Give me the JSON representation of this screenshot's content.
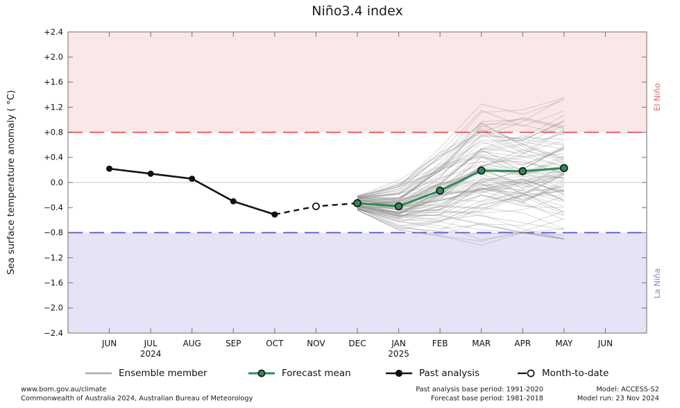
{
  "chart": {
    "title": "Niño3.4 index",
    "ylabel": "Sea surface temperature anomaly ( °C)",
    "el_nino_label": "El Niño",
    "la_nina_label": "La Niña"
  },
  "chart_data": {
    "type": "line",
    "title": "Niño3.4 index",
    "ylabel": "Sea surface temperature anomaly ( °C)",
    "ylim": [
      -2.4,
      2.4
    ],
    "ytick_values": [
      2.4,
      2.0,
      1.6,
      1.2,
      0.8,
      0.4,
      0.0,
      -0.4,
      -0.8,
      -1.2,
      -1.6,
      -2.0,
      -2.4
    ],
    "ytick_labels": [
      "+2.4",
      "+2.0",
      "+1.6",
      "+1.2",
      "+0.8",
      "+0.4",
      "0.0",
      "−0.4",
      "−0.8",
      "−1.2",
      "−1.6",
      "−2.0",
      "−2.4"
    ],
    "x_categories": [
      "JUN",
      "JUL",
      "AUG",
      "SEP",
      "OCT",
      "NOV",
      "DEC",
      "JAN",
      "FEB",
      "MAR",
      "APR",
      "MAY",
      "JUN"
    ],
    "x_year_labels": [
      {
        "index": 1,
        "label": "2024"
      },
      {
        "index": 7,
        "label": "2025"
      }
    ],
    "thresholds": {
      "el_nino": 0.8,
      "la_nina": -0.8
    },
    "grid": false,
    "legend_position": "bottom",
    "series": [
      {
        "name": "Past analysis",
        "x_indices": [
          0,
          1,
          2,
          3,
          4
        ],
        "x": [
          "JUN",
          "JUL",
          "AUG",
          "SEP",
          "OCT"
        ],
        "values": [
          0.22,
          0.14,
          0.06,
          -0.3,
          -0.51
        ]
      },
      {
        "name": "Month-to-date",
        "x_indices": [
          5
        ],
        "x": [
          "NOV"
        ],
        "values": [
          -0.38
        ]
      },
      {
        "name": "Forecast mean",
        "x_indices": [
          6,
          7,
          8,
          9,
          10,
          11
        ],
        "x": [
          "DEC",
          "JAN",
          "FEB",
          "MAR",
          "APR",
          "MAY"
        ],
        "values": [
          -0.33,
          -0.38,
          -0.13,
          0.19,
          0.18,
          0.23
        ]
      }
    ],
    "dashed_connector": {
      "x_indices": [
        4,
        5,
        6
      ],
      "values": [
        -0.51,
        -0.38,
        -0.33
      ]
    },
    "ensemble": {
      "name": "Ensemble member",
      "count": 99,
      "x_indices": [
        6,
        7,
        8,
        9,
        10,
        11
      ],
      "x": [
        "DEC",
        "JAN",
        "FEB",
        "MAR",
        "APR",
        "MAY"
      ],
      "mean": [
        -0.33,
        -0.38,
        -0.13,
        0.19,
        0.18,
        0.23
      ],
      "envelope_min": [
        -0.55,
        -0.85,
        -0.85,
        -1.0,
        -0.8,
        -0.9
      ],
      "envelope_max": [
        -0.12,
        0.15,
        0.8,
        1.25,
        1.3,
        1.35
      ]
    },
    "colors": {
      "el_nino_fill": "#fae8e8",
      "la_nina_fill": "#e4e4f6",
      "el_nino_line": "#f05555",
      "la_nina_line": "#5d5dcf",
      "el_nino_text": "#e06a6a",
      "la_nina_text": "#8787c8",
      "forecast_green": "#2e8b57",
      "ensemble_gray": "#a9a9a9",
      "past_black": "#111111",
      "zero_line": "#c9c9c9",
      "spine": "#6e6e6e"
    }
  },
  "legend": {
    "items": [
      {
        "label": "Ensemble member"
      },
      {
        "label": "Forecast mean"
      },
      {
        "label": "Past analysis"
      },
      {
        "label": "Month-to-date"
      }
    ]
  },
  "footer": {
    "left_lines": [
      "www.bom.gov.au/climate",
      "Commonwealth of Australia 2024, Australian Bureau of Meteorology"
    ],
    "base_period_lines": [
      "Past analysis base period: 1991-2020",
      "Forecast base period: 1981-2018"
    ],
    "model_lines": [
      "Model: ACCESS-S2",
      "Model run: 23 Nov 2024"
    ]
  }
}
